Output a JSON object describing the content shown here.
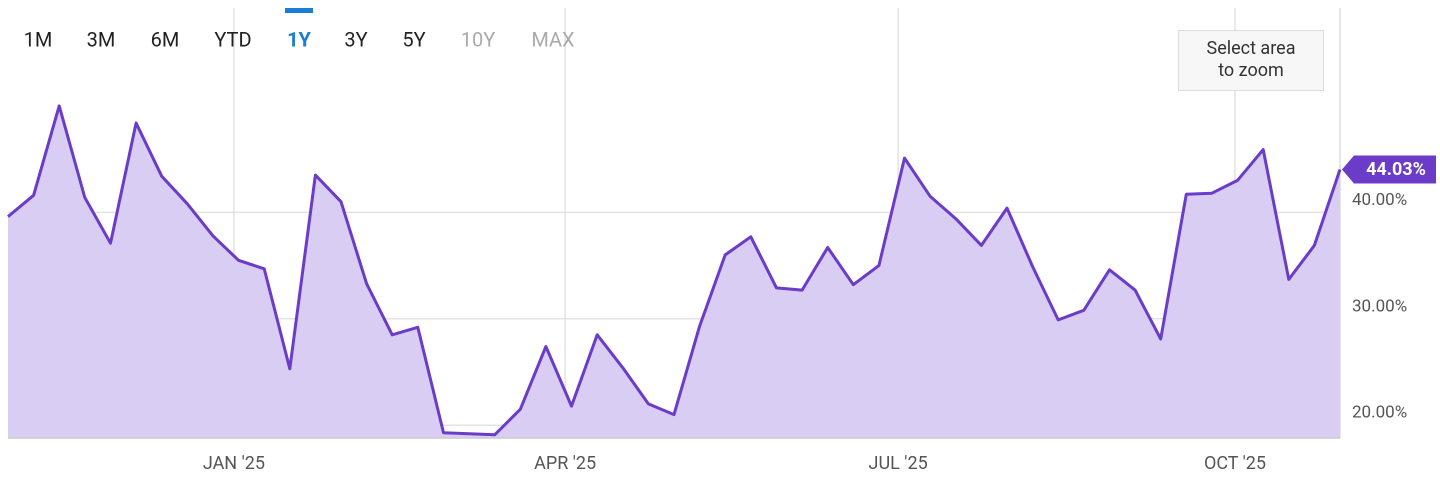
{
  "chart_data": {
    "type": "area",
    "range_buttons": [
      "1M",
      "3M",
      "6M",
      "YTD",
      "1Y",
      "3Y",
      "5Y",
      "10Y",
      "MAX"
    ],
    "active_range_index": 4,
    "disabled_range_indices": [
      7,
      8
    ],
    "zoom_button": "Select area to zoom",
    "values": [
      39.6,
      41.6,
      50.0,
      41.4,
      37.1,
      48.4,
      43.4,
      40.8,
      37.8,
      35.5,
      34.7,
      25.3,
      43.5,
      41.0,
      33.3,
      28.5,
      29.2,
      19.3,
      19.2,
      19.1,
      21.5,
      27.4,
      21.8,
      28.5,
      25.4,
      22.0,
      21.0,
      29.3,
      36.0,
      37.7,
      32.9,
      32.7,
      36.7,
      33.2,
      35.0,
      45.1,
      41.5,
      39.4,
      36.9,
      40.4,
      34.9,
      29.9,
      30.8,
      34.6,
      32.7,
      28.1,
      41.7,
      41.8,
      43.0,
      45.9,
      33.7,
      36.9,
      44.03
    ],
    "last_value_label": "44.03%",
    "color": "#6a3cc8",
    "fill_color": "#d9cdf4",
    "xlim": [
      0,
      52
    ],
    "xticks": [
      {
        "value": 8.82,
        "label": "JAN '25"
      },
      {
        "value": 21.75,
        "label": "APR '25"
      },
      {
        "value": 34.75,
        "label": "JUL '25"
      },
      {
        "value": 47.9,
        "label": "OCT '25"
      }
    ],
    "ylim": [
      18.8,
      59.2
    ],
    "yticks": [
      {
        "value": 20,
        "label": "20.00%"
      },
      {
        "value": 30,
        "label": "30.00%"
      },
      {
        "value": 40,
        "label": "40.00%"
      }
    ],
    "grid": true
  }
}
